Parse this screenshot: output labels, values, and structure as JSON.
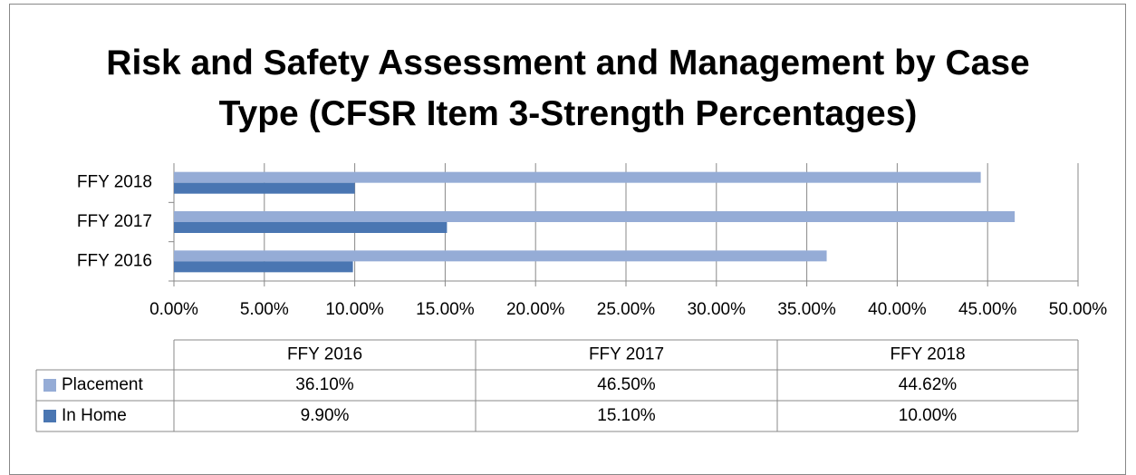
{
  "chart_data": {
    "type": "bar",
    "orientation": "horizontal",
    "title": "Risk and Safety Assessment and Management by Case Type (CFSR Item 3-Strength Percentages)",
    "categories": [
      "FFY 2016",
      "FFY 2017",
      "FFY 2018"
    ],
    "series": [
      {
        "name": "Placement",
        "color": "#95acd6",
        "values": [
          36.1,
          46.5,
          44.62
        ],
        "value_labels": [
          "36.10%",
          "46.50%",
          "44.62%"
        ]
      },
      {
        "name": "In Home",
        "color": "#4a76b2",
        "values": [
          9.9,
          15.1,
          10.0
        ],
        "value_labels": [
          "9.90%",
          "15.10%",
          "10.00%"
        ]
      }
    ],
    "xlim": [
      0,
      50
    ],
    "xticks": [
      {
        "value": 0,
        "label": "0.00%"
      },
      {
        "value": 5,
        "label": "5.00%"
      },
      {
        "value": 10,
        "label": "10.00%"
      },
      {
        "value": 15,
        "label": "15.00%"
      },
      {
        "value": 20,
        "label": "20.00%"
      },
      {
        "value": 25,
        "label": "25.00%"
      },
      {
        "value": 30,
        "label": "30.00%"
      },
      {
        "value": 35,
        "label": "35.00%"
      },
      {
        "value": 40,
        "label": "40.00%"
      },
      {
        "value": 45,
        "label": "45.00%"
      },
      {
        "value": 50,
        "label": "50.00%"
      }
    ],
    "grid": true
  }
}
